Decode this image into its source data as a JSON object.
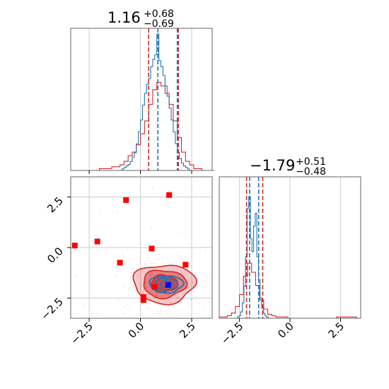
{
  "chart_data": {
    "type": "corner",
    "params": [
      {
        "median": 1.16,
        "title_main": "1.16",
        "title_plus": "+0.68",
        "title_minus": "−0.69",
        "range": [
          -3.4,
          3.5
        ],
        "ticks": [
          {
            "value": -2.5,
            "label": "−2.5"
          },
          {
            "value": 0.0,
            "label": "0.0"
          },
          {
            "value": 2.5,
            "label": "2.5"
          }
        ]
      },
      {
        "median": -1.79,
        "title_main": "−1.79",
        "title_plus": "+0.51",
        "title_minus": "−0.48",
        "range": [
          -3.5,
          3.5
        ],
        "ticks": [
          {
            "value": -2.5,
            "label": "−2.5"
          },
          {
            "value": 0.0,
            "label": "0.0"
          },
          {
            "value": 2.5,
            "label": "2.5"
          }
        ]
      }
    ],
    "colors": {
      "red": "#d62728",
      "blue": "#1f77b4",
      "true_marker": "#0000ff",
      "square": "#ff0000"
    },
    "hist1": {
      "red_lines": [
        0.4,
        1.85
      ],
      "blue_lines": [
        0.85,
        1.8
      ],
      "edges_start": -3.4,
      "bin_width": 0.2,
      "red_counts": [
        0,
        0,
        0,
        0,
        0,
        0,
        0,
        1,
        1,
        1,
        2,
        2,
        3,
        5,
        8,
        10,
        14,
        20,
        27,
        36,
        44,
        48,
        46,
        42,
        36,
        27,
        18,
        10,
        5,
        3,
        1,
        1,
        0,
        0,
        0
      ],
      "blue_edges_start": -0.9,
      "blue_bin_width": 0.1,
      "blue_counts": [
        1,
        2,
        3,
        4,
        6,
        9,
        12,
        18,
        26,
        34,
        44,
        52,
        58,
        62,
        70,
        75,
        78,
        92,
        74,
        70,
        64,
        57,
        50,
        42,
        34,
        26,
        18,
        12,
        8,
        5,
        3,
        2,
        1
      ]
    },
    "hist2": {
      "red_lines": [
        -2.15,
        -1.35
      ],
      "blue_lines": [
        -2.0,
        -1.55
      ],
      "edges_start": -3.5,
      "bin_width": 0.2,
      "red_counts": [
        1,
        1,
        2,
        4,
        9,
        18,
        32,
        42,
        35,
        25,
        14,
        7,
        3,
        2,
        1,
        1,
        1,
        0,
        0,
        0,
        0,
        0,
        0,
        0,
        0,
        0,
        0,
        0,
        0,
        1,
        1,
        1,
        1,
        1,
        0
      ],
      "blue_edges_start": -2.6,
      "blue_bin_width": 0.08,
      "blue_counts": [
        1,
        2,
        5,
        12,
        25,
        48,
        86,
        95,
        62,
        52,
        72,
        82,
        48,
        30,
        16,
        8,
        4,
        2,
        1
      ]
    },
    "squares": [
      [
        -3.2,
        0.1
      ],
      [
        -2.1,
        0.3
      ],
      [
        -0.7,
        2.35
      ],
      [
        1.4,
        2.6
      ],
      [
        -1.0,
        -0.75
      ],
      [
        0.55,
        -0.05
      ],
      [
        2.2,
        -0.85
      ],
      [
        0.7,
        -1.95
      ],
      [
        0.15,
        -2.45
      ],
      [
        0.15,
        -2.6
      ]
    ],
    "true_point": [
      1.35,
      -1.85
    ],
    "scatter_center": [
      1.16,
      -1.79
    ],
    "scatter_spread": [
      1.0,
      0.75
    ],
    "contour_levels": [
      {
        "rx": 1.5,
        "ry": 0.95,
        "fill_opacity": 0.25
      },
      {
        "rx": 1.05,
        "ry": 0.68,
        "fill_opacity": 0.45
      },
      {
        "rx": 0.65,
        "ry": 0.42,
        "fill_opacity": 0.7
      }
    ],
    "blue_contours": [
      {
        "rx": 0.82,
        "ry": 0.42
      },
      {
        "rx": 0.55,
        "ry": 0.28
      },
      {
        "rx": 0.3,
        "ry": 0.16
      }
    ]
  }
}
